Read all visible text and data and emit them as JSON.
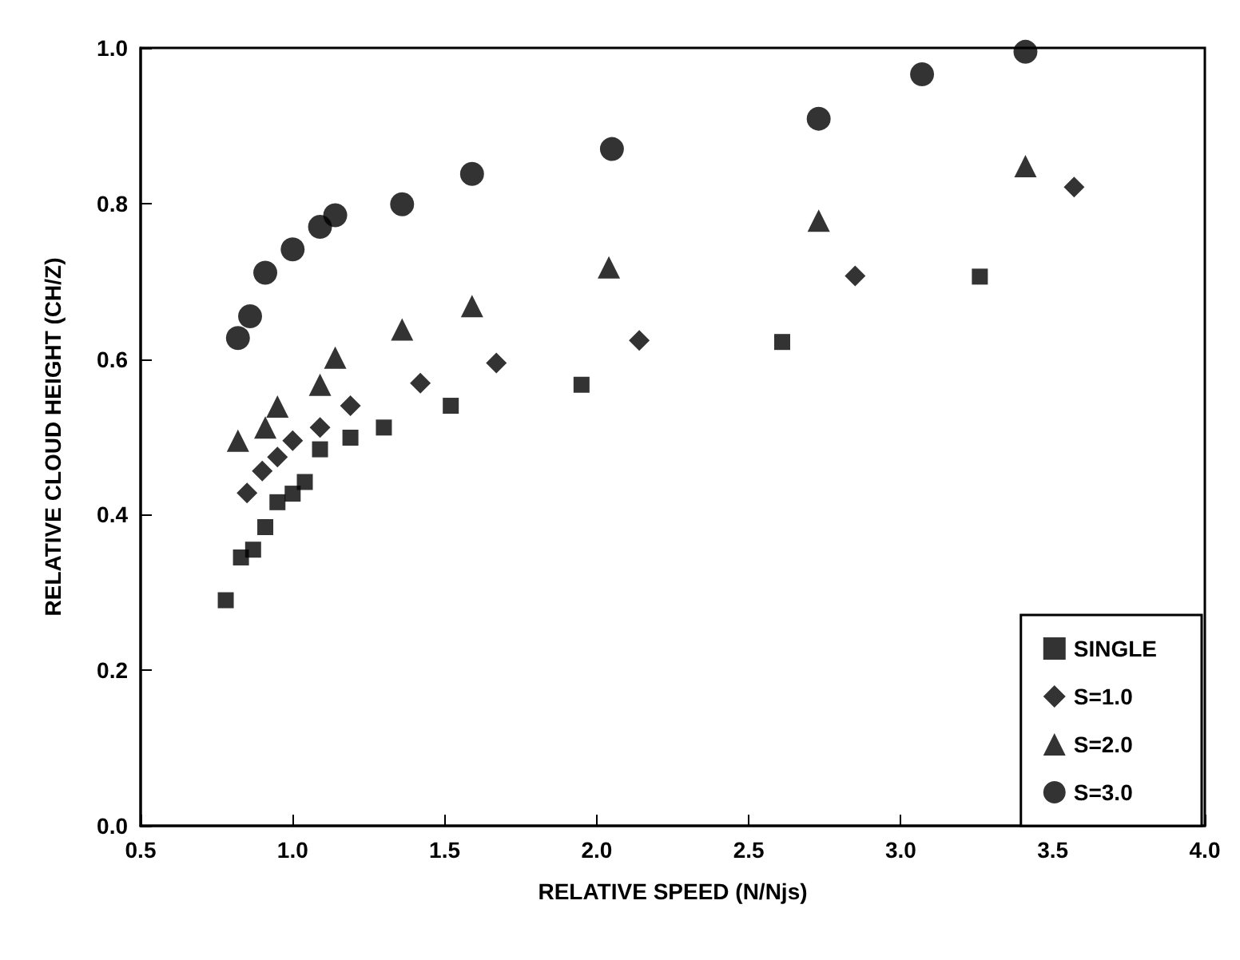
{
  "chart_data": {
    "type": "scatter",
    "xlabel": "RELATIVE SPEED (N/Njs)",
    "ylabel": "RELATIVE CLOUD HEIGHT (CH/Z)",
    "xlim": [
      0.5,
      4.0
    ],
    "xticks": [
      {
        "value": 0.5,
        "label": "0.5"
      },
      {
        "value": 1.0,
        "label": "1.0"
      },
      {
        "value": 1.5,
        "label": "1.5"
      },
      {
        "value": 2.0,
        "label": "2.0"
      },
      {
        "value": 2.5,
        "label": "2.5"
      },
      {
        "value": 3.0,
        "label": "3.0"
      },
      {
        "value": 3.5,
        "label": "3.5"
      },
      {
        "value": 4.0,
        "label": "4.0"
      }
    ],
    "ylim": [
      0,
      1.0
    ],
    "yticks": [
      {
        "value": 0,
        "label": "0.0"
      },
      0.2,
      0.4,
      0.6,
      0.8,
      {
        "value": 1.0,
        "label": "1.0"
      }
    ],
    "grid": false,
    "legend": "bottom right",
    "series": [
      {
        "name": "SINGLE",
        "color": "#000000",
        "marker": "square",
        "x": [
          0.78,
          0.83,
          0.87,
          0.91,
          0.95,
          1.0,
          1.04,
          1.09,
          1.19,
          1.3,
          1.52,
          1.95,
          2.61,
          3.26
        ],
        "values": [
          0.29,
          0.345,
          0.355,
          0.384,
          0.416,
          0.427,
          0.442,
          0.484,
          0.499,
          0.512,
          0.54,
          0.567,
          0.622,
          0.706
        ]
      },
      {
        "name": "S=1.0",
        "color": "#000000",
        "marker": "diamond",
        "x": [
          0.85,
          0.9,
          0.95,
          1.0,
          1.09,
          1.19,
          1.42,
          1.67,
          2.14,
          2.85,
          3.57
        ],
        "values": [
          0.428,
          0.456,
          0.474,
          0.495,
          0.512,
          0.54,
          0.569,
          0.595,
          0.624,
          0.707,
          0.821
        ]
      },
      {
        "name": "S=2.0",
        "color": "#000000",
        "marker": "triangle",
        "x": [
          0.82,
          0.91,
          0.95,
          1.09,
          1.14,
          1.36,
          1.59,
          2.04,
          2.73,
          3.41
        ],
        "values": [
          0.495,
          0.512,
          0.539,
          0.567,
          0.602,
          0.638,
          0.668,
          0.718,
          0.778,
          0.848
        ]
      },
      {
        "name": "S=3.0",
        "color": "#000000",
        "marker": "circle",
        "x": [
          0.82,
          0.86,
          0.91,
          1.0,
          1.09,
          1.14,
          1.36,
          1.59,
          2.05,
          2.73,
          3.07,
          3.41
        ],
        "values": [
          0.627,
          0.655,
          0.711,
          0.741,
          0.77,
          0.785,
          0.799,
          0.838,
          0.87,
          0.909,
          0.966,
          0.995
        ]
      }
    ]
  }
}
